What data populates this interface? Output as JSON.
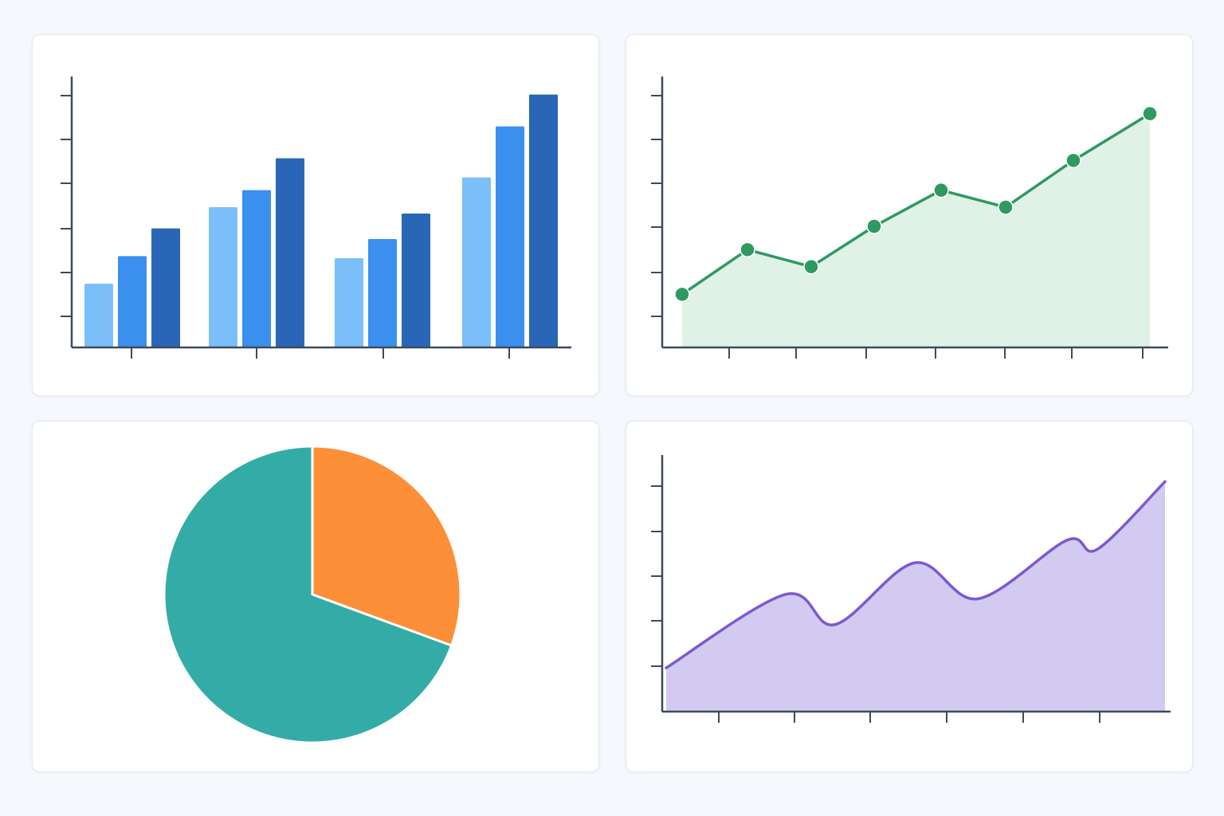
{
  "colors": {
    "axis": "#3d4a5c",
    "bar_light": "#7bbffa",
    "bar_mid": "#3b8fee",
    "bar_dark": "#2966b8",
    "line": "#2e9a5f",
    "line_fill": "#e0f1e5",
    "pie_teal": "#33aca7",
    "pie_orange": "#fd8f38",
    "area_line": "#7f58d0",
    "area_fill": "#d3caf2"
  },
  "chart_data": [
    {
      "type": "bar",
      "title": "",
      "xlabel": "",
      "ylabel": "",
      "categories": [
        "",
        "",
        "",
        ""
      ],
      "ylim": [
        0,
        6
      ],
      "grid": false,
      "series": [
        {
          "values": [
            1.5,
            3.3,
            2.1,
            4.0
          ]
        },
        {
          "values": [
            2.15,
            3.7,
            2.55,
            5.2
          ]
        },
        {
          "values": [
            2.8,
            4.45,
            3.15,
            5.95
          ]
        }
      ]
    },
    {
      "type": "area",
      "title": "",
      "xlabel": "",
      "ylabel": "",
      "x": [
        0,
        1,
        2,
        3,
        4,
        5,
        6,
        7
      ],
      "ylim": [
        0,
        6
      ],
      "grid": false,
      "series": [
        {
          "values": [
            1.25,
            2.3,
            1.9,
            2.85,
            3.7,
            3.3,
            4.4,
            5.5
          ]
        }
      ]
    },
    {
      "type": "pie",
      "title": "",
      "slices": [
        {
          "value": 30.6
        },
        {
          "value": 69.4
        }
      ]
    },
    {
      "type": "area",
      "title": "",
      "xlabel": "",
      "ylabel": "",
      "x": [
        0,
        1,
        2,
        3,
        4,
        5,
        6,
        7
      ],
      "ylim": [
        0,
        5
      ],
      "grid": false,
      "series": [
        {
          "values": [
            0.97,
            2.6,
            1.93,
            3.3,
            2.5,
            3.8,
            3.6,
            5.1
          ]
        }
      ]
    }
  ]
}
